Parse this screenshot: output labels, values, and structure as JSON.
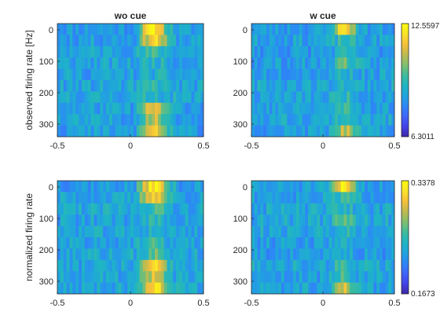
{
  "chart_data": [
    {
      "type": "heatmap",
      "title": "wo cue",
      "ylabel": "observed firing rate [Hz]",
      "xlim": [
        -0.5,
        0.5
      ],
      "ylim": [
        340,
        -20
      ],
      "xticks": [
        "-0.5",
        "0",
        "0.5"
      ],
      "yticks": [
        "0",
        "100",
        "200",
        "300"
      ],
      "rows": 10,
      "cols": 48,
      "seed": 11,
      "response": {
        "onset": 0.05,
        "peak": 0.16,
        "width": 0.09
      },
      "row_gain": [
        1.0,
        0.85,
        0.2,
        0.15,
        0.1,
        0.2,
        0.15,
        0.7,
        0.55,
        0.8
      ],
      "clim": [
        6.3011,
        12.5597
      ]
    },
    {
      "type": "heatmap",
      "title": "w cue",
      "ylabel": "",
      "xlim": [
        -0.5,
        0.5
      ],
      "ylim": [
        340,
        -20
      ],
      "xticks": [
        "-0.5",
        "0",
        "0.5"
      ],
      "yticks": [
        "0",
        "100",
        "200",
        "300"
      ],
      "rows": 10,
      "cols": 48,
      "seed": 23,
      "response": {
        "onset": 0.05,
        "peak": 0.15,
        "width": 0.08
      },
      "row_gain": [
        0.9,
        0.2,
        0.15,
        0.4,
        0.15,
        0.1,
        0.2,
        0.25,
        0.2,
        0.6
      ],
      "colorbar": {
        "ticks": [
          "12.5597",
          "6.3011"
        ]
      },
      "clim": [
        6.3011,
        12.5597
      ]
    },
    {
      "type": "heatmap",
      "title": "",
      "ylabel": "normalized firing rate",
      "xlim": [
        -0.5,
        0.5
      ],
      "ylim": [
        340,
        -20
      ],
      "xticks": [
        "-0.5",
        "0",
        "0.5"
      ],
      "yticks": [
        "0",
        "100",
        "200",
        "300"
      ],
      "rows": 10,
      "cols": 48,
      "seed": 37,
      "response": {
        "onset": 0.05,
        "peak": 0.16,
        "width": 0.09
      },
      "row_gain": [
        1.0,
        0.85,
        0.25,
        0.15,
        0.1,
        0.2,
        0.3,
        0.75,
        0.6,
        0.9
      ],
      "clim": [
        0.1673,
        0.3378
      ]
    },
    {
      "type": "heatmap",
      "title": "",
      "ylabel": "",
      "xlim": [
        -0.5,
        0.5
      ],
      "ylim": [
        340,
        -20
      ],
      "xticks": [
        "-0.5",
        "0",
        "0.5"
      ],
      "yticks": [
        "0",
        "100",
        "200",
        "300"
      ],
      "rows": 10,
      "cols": 48,
      "seed": 51,
      "response": {
        "onset": 0.05,
        "peak": 0.15,
        "width": 0.08
      },
      "row_gain": [
        0.95,
        0.25,
        0.15,
        0.3,
        0.15,
        0.1,
        0.15,
        0.2,
        0.25,
        0.6
      ],
      "colorbar": {
        "ticks": [
          "0.3378",
          "0.1673"
        ]
      },
      "clim": [
        0.1673,
        0.3378
      ]
    }
  ],
  "colormap": [
    "#3e26a8",
    "#4443e8",
    "#3f66f9",
    "#2d88f6",
    "#20a4dd",
    "#1fb5c3",
    "#3ebc9c",
    "#81bf6e",
    "#c1ba4f",
    "#f5c03a",
    "#f9e32a",
    "#f9fb0e"
  ]
}
